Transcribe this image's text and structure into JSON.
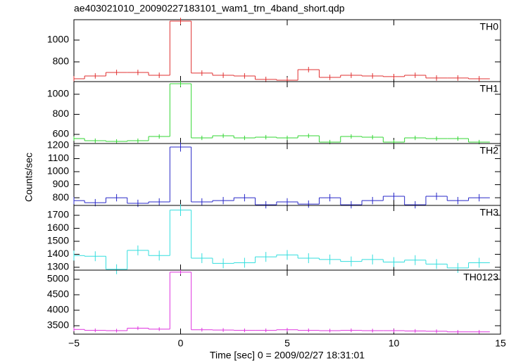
{
  "figure": {
    "title": "ae403021010_20090227183101_wam1_trn_4band_short.qdp",
    "xlabel": "Time [sec] 0 = 2009/02/27 18:31:01",
    "ylabel": "Counts/sec",
    "xlim": [
      -5,
      15
    ],
    "xticks": [
      {
        "value": -5,
        "label": "−5"
      },
      0,
      5,
      10,
      15
    ]
  },
  "chart_data": [
    {
      "type": "step",
      "label": "TH0",
      "color": "#e03030",
      "x": [
        -5,
        -4,
        -3,
        -2,
        -1,
        0,
        1,
        2,
        3,
        4,
        5,
        6,
        7,
        8,
        9,
        10,
        11,
        12,
        13,
        14
      ],
      "values": [
        645,
        671,
        703,
        703,
        677,
        1174,
        697,
        677,
        671,
        639,
        632,
        729,
        658,
        677,
        671,
        665,
        677,
        652,
        652,
        645
      ],
      "errors": [
        25,
        25,
        25,
        25,
        25,
        30,
        25,
        25,
        25,
        25,
        25,
        25,
        25,
        25,
        25,
        25,
        25,
        25,
        25,
        25
      ],
      "ylim": [
        619,
        1187
      ],
      "yticks": [
        800,
        1000
      ]
    },
    {
      "type": "step",
      "label": "TH1",
      "color": "#33d633",
      "x": [
        -5,
        -4,
        -3,
        -2,
        -1,
        0,
        1,
        2,
        3,
        4,
        5,
        6,
        7,
        8,
        9,
        10,
        11,
        12,
        13,
        14
      ],
      "values": [
        558,
        537,
        530,
        537,
        579,
        1105,
        565,
        586,
        565,
        572,
        565,
        586,
        523,
        579,
        572,
        523,
        565,
        558,
        558,
        523
      ],
      "errors": [
        22,
        22,
        22,
        22,
        22,
        30,
        22,
        22,
        22,
        22,
        22,
        22,
        22,
        22,
        22,
        22,
        22,
        22,
        22,
        22
      ],
      "ylim": [
        509,
        1126
      ],
      "yticks": [
        600,
        800,
        1000
      ]
    },
    {
      "type": "step",
      "label": "TH2",
      "color": "#2828c8",
      "x": [
        -5,
        -4,
        -3,
        -2,
        -1,
        0,
        1,
        2,
        3,
        4,
        5,
        6,
        7,
        8,
        9,
        10,
        11,
        12,
        13,
        14
      ],
      "values": [
        778,
        762,
        800,
        757,
        768,
        1189,
        768,
        778,
        800,
        746,
        768,
        751,
        800,
        746,
        778,
        811,
        746,
        811,
        778,
        800
      ],
      "errors": [
        28,
        28,
        28,
        28,
        28,
        35,
        28,
        28,
        28,
        28,
        28,
        28,
        28,
        28,
        28,
        28,
        28,
        28,
        28,
        28
      ],
      "ylim": [
        741,
        1216
      ],
      "yticks": [
        800,
        900,
        1000,
        1100,
        1200
      ]
    },
    {
      "type": "step",
      "label": "TH3",
      "color": "#33dede",
      "x": [
        -5,
        -4,
        -3,
        -2,
        -1,
        0,
        1,
        2,
        3,
        4,
        5,
        6,
        7,
        8,
        9,
        10,
        11,
        12,
        13,
        14
      ],
      "values": [
        1390,
        1385,
        1285,
        1430,
        1390,
        1740,
        1370,
        1330,
        1335,
        1380,
        1395,
        1370,
        1360,
        1345,
        1360,
        1340,
        1355,
        1325,
        1295,
        1335
      ],
      "errors": [
        38,
        38,
        38,
        38,
        38,
        45,
        38,
        38,
        38,
        38,
        38,
        38,
        38,
        38,
        38,
        38,
        38,
        38,
        38,
        38
      ],
      "ylim": [
        1278,
        1776
      ],
      "yticks": [
        1300,
        1400,
        1500,
        1600,
        1700
      ]
    },
    {
      "type": "step",
      "label": "TH0123",
      "color": "#de33de",
      "x": [
        -5,
        -4,
        -3,
        -2,
        -1,
        0,
        1,
        2,
        3,
        4,
        5,
        6,
        7,
        8,
        9,
        10,
        11,
        12,
        13,
        14
      ],
      "values": [
        3380,
        3350,
        3340,
        3420,
        3390,
        5230,
        3370,
        3360,
        3350,
        3350,
        3370,
        3350,
        3340,
        3350,
        3340,
        3340,
        3330,
        3320,
        3300,
        3300
      ],
      "errors": [
        60,
        60,
        60,
        60,
        60,
        75,
        60,
        60,
        60,
        60,
        60,
        60,
        60,
        60,
        60,
        60,
        60,
        60,
        60,
        60
      ],
      "ylim": [
        3227,
        5295
      ],
      "yticks": [
        3500,
        4000,
        4500,
        5000
      ]
    }
  ]
}
